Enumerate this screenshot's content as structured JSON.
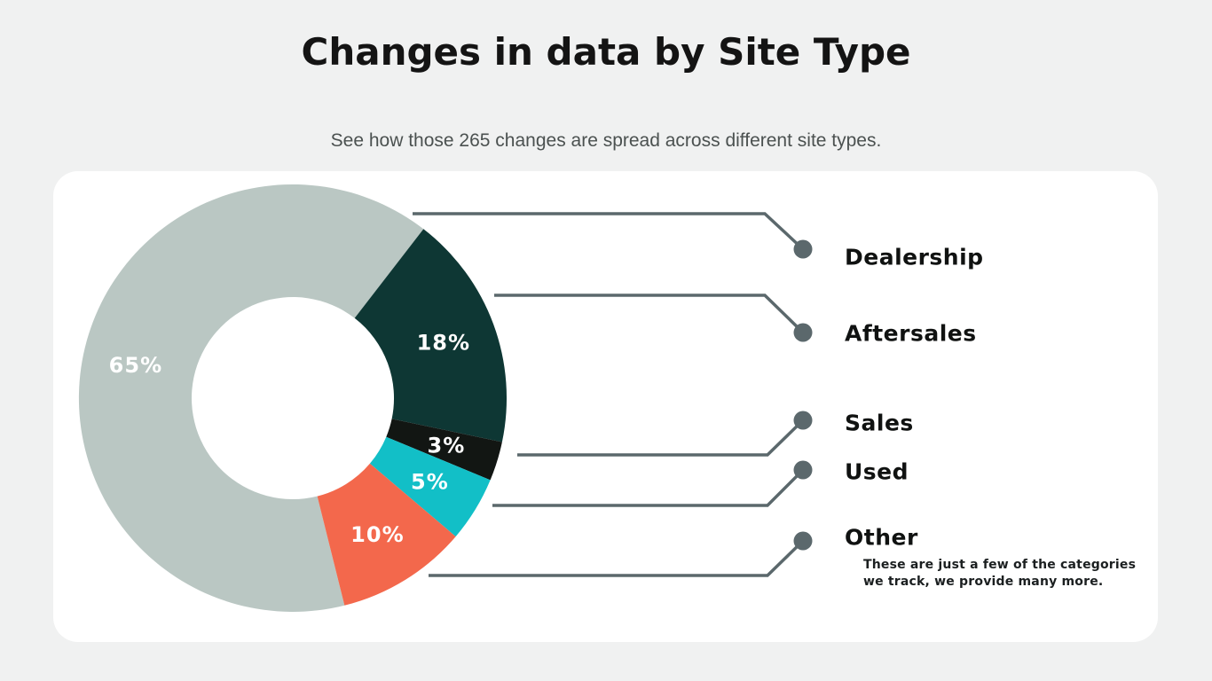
{
  "page": {
    "title": "Changes in data by Site Type",
    "subtitle": "See how those 265 changes are spread across different site types."
  },
  "chart_data": {
    "type": "pie",
    "subtype": "donut",
    "title": "Changes in data by Site Type",
    "subtitle": "See how those 265 changes are spread across different site types.",
    "total_changes": 265,
    "unit": "%",
    "categories": [
      "Dealership",
      "Aftersales",
      "Sales",
      "Used",
      "Other"
    ],
    "values": [
      65,
      18,
      3,
      5,
      10
    ],
    "slice_labels": [
      "65%",
      "18%",
      "3%",
      "5%",
      "10%"
    ],
    "colors": [
      "#bac7c3",
      "#0e3734",
      "#121613",
      "#12bfc7",
      "#f3684c"
    ],
    "legend_position": "right",
    "legend_style": "dot-with-connector-line"
  },
  "note": {
    "line1": "These are just a few of the categories",
    "line2": "we track, we provide many more."
  },
  "style": {
    "background": "#f0f1f1",
    "card_background": "#ffffff",
    "connector_color": "#5b686c",
    "title_color": "#141414",
    "subtitle_color": "#4b5150",
    "legend_text_color": "#101211",
    "slice_label_color": "#ffffff"
  }
}
